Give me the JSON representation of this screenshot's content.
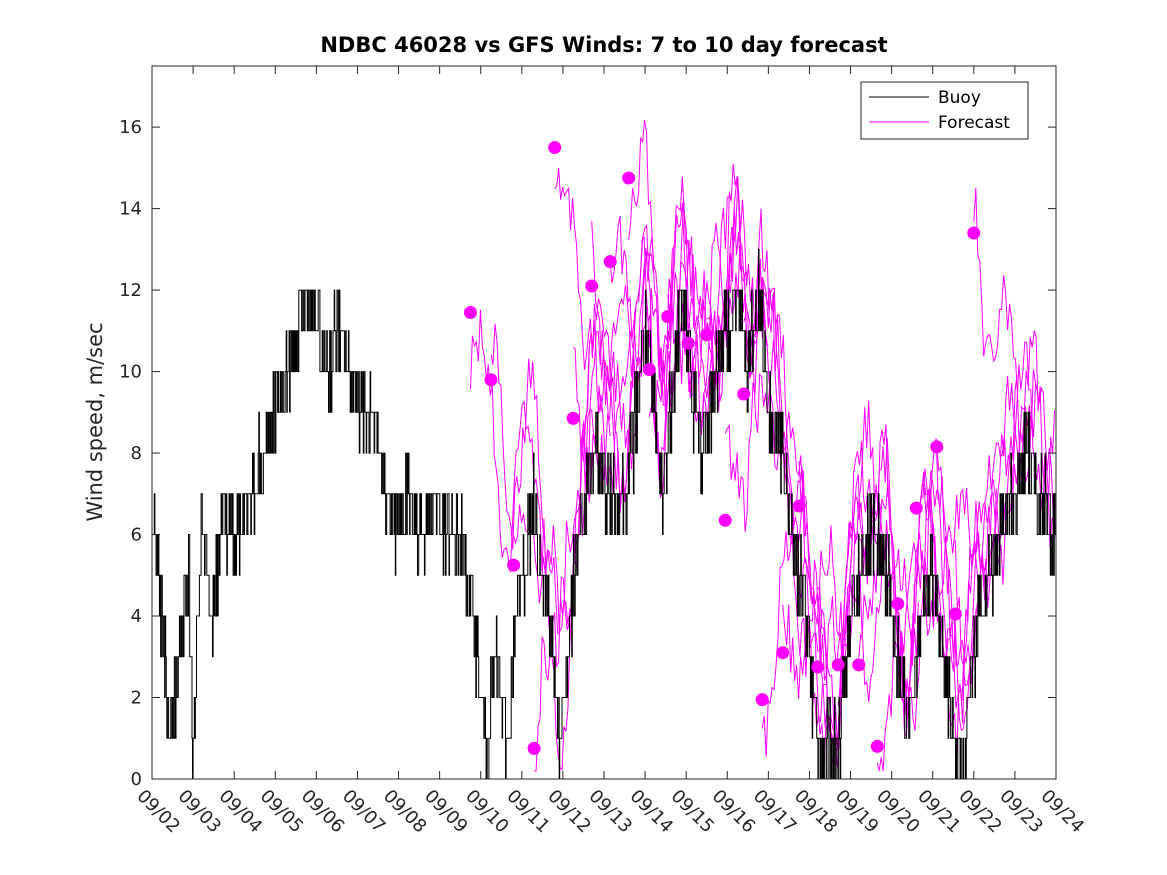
{
  "chart_data": {
    "type": "line",
    "title": "NDBC 46028 vs GFS Winds: 7 to 10 day forecast",
    "xlabel": "",
    "ylabel": "Wind speed, m/sec",
    "xlim": [
      0,
      22
    ],
    "ylim": [
      0,
      17.5
    ],
    "yticks": [
      0,
      2,
      4,
      6,
      8,
      10,
      12,
      14,
      16
    ],
    "xtick_labels": [
      "09/02",
      "09/03",
      "09/04",
      "09/05",
      "09/06",
      "09/07",
      "09/08",
      "09/09",
      "09/10",
      "09/11",
      "09/12",
      "09/13",
      "09/14",
      "09/15",
      "09/16",
      "09/17",
      "09/18",
      "09/19",
      "09/20",
      "09/21",
      "09/22",
      "09/23",
      "09/24"
    ],
    "legend": {
      "position": "top-right",
      "entries": [
        "Buoy",
        "Forecast"
      ]
    },
    "colors": {
      "buoy": "#000000",
      "forecast": "#ff00ff",
      "axis": "#262626"
    },
    "buoy_anchors": [
      [
        0.0,
        7
      ],
      [
        0.15,
        5
      ],
      [
        0.3,
        3
      ],
      [
        0.45,
        1
      ],
      [
        0.55,
        2
      ],
      [
        0.75,
        4
      ],
      [
        0.9,
        5
      ],
      [
        1.0,
        0.5
      ],
      [
        1.2,
        6
      ],
      [
        1.45,
        4
      ],
      [
        1.7,
        6
      ],
      [
        2.0,
        6
      ],
      [
        2.4,
        7
      ],
      [
        2.7,
        8
      ],
      [
        3.0,
        9
      ],
      [
        3.3,
        10
      ],
      [
        3.6,
        11
      ],
      [
        3.8,
        12
      ],
      [
        4.0,
        11
      ],
      [
        4.3,
        10
      ],
      [
        4.5,
        11
      ],
      [
        4.8,
        10
      ],
      [
        5.2,
        9
      ],
      [
        5.5,
        8
      ],
      [
        5.9,
        6
      ],
      [
        6.2,
        7
      ],
      [
        6.5,
        6
      ],
      [
        6.9,
        7
      ],
      [
        7.1,
        6
      ],
      [
        7.5,
        6
      ],
      [
        7.8,
        4
      ],
      [
        8.0,
        2
      ],
      [
        8.15,
        0.8
      ],
      [
        8.35,
        3
      ],
      [
        8.5,
        2
      ],
      [
        8.65,
        1
      ],
      [
        8.8,
        3
      ],
      [
        9.0,
        5
      ],
      [
        9.3,
        7
      ],
      [
        9.55,
        5
      ],
      [
        9.75,
        3
      ],
      [
        9.9,
        1
      ],
      [
        10.1,
        3
      ],
      [
        10.4,
        6
      ],
      [
        10.75,
        8
      ],
      [
        11.1,
        7
      ],
      [
        11.5,
        7
      ],
      [
        11.8,
        9
      ],
      [
        12.0,
        11
      ],
      [
        12.2,
        9
      ],
      [
        12.4,
        7
      ],
      [
        12.7,
        10
      ],
      [
        12.9,
        12
      ],
      [
        13.2,
        9
      ],
      [
        13.4,
        8
      ],
      [
        13.7,
        10
      ],
      [
        14.0,
        11
      ],
      [
        14.2,
        12
      ],
      [
        14.5,
        10
      ],
      [
        14.8,
        12
      ],
      [
        15.0,
        9
      ],
      [
        15.3,
        8
      ],
      [
        15.6,
        6
      ],
      [
        15.9,
        4
      ],
      [
        16.1,
        2
      ],
      [
        16.3,
        0.5
      ],
      [
        16.5,
        1
      ],
      [
        16.7,
        0.5
      ],
      [
        16.9,
        3
      ],
      [
        17.2,
        5
      ],
      [
        17.5,
        6
      ],
      [
        17.9,
        5
      ],
      [
        18.1,
        3
      ],
      [
        18.4,
        1.5
      ],
      [
        18.7,
        4
      ],
      [
        19.0,
        5
      ],
      [
        19.3,
        3
      ],
      [
        19.5,
        1
      ],
      [
        19.75,
        0
      ],
      [
        19.9,
        2
      ],
      [
        20.1,
        4
      ],
      [
        20.4,
        5
      ],
      [
        20.7,
        6
      ],
      [
        21.0,
        7
      ],
      [
        21.3,
        8
      ],
      [
        21.6,
        7
      ],
      [
        21.9,
        6
      ],
      [
        22.0,
        6
      ]
    ],
    "forecast_markers": [
      [
        7.75,
        11.45
      ],
      [
        8.25,
        9.8
      ],
      [
        8.8,
        5.25
      ],
      [
        9.3,
        0.75
      ],
      [
        9.8,
        15.5
      ],
      [
        10.25,
        8.85
      ],
      [
        10.7,
        12.1
      ],
      [
        11.15,
        12.7
      ],
      [
        11.6,
        14.75
      ],
      [
        12.1,
        10.05
      ],
      [
        12.55,
        11.35
      ],
      [
        13.05,
        10.7
      ],
      [
        13.5,
        10.9
      ],
      [
        13.95,
        6.35
      ],
      [
        14.4,
        9.45
      ],
      [
        14.85,
        1.95
      ],
      [
        15.35,
        3.1
      ],
      [
        15.75,
        6.7
      ],
      [
        16.2,
        2.75
      ],
      [
        16.7,
        2.8
      ],
      [
        17.2,
        2.8
      ],
      [
        17.65,
        0.8
      ],
      [
        18.15,
        4.3
      ],
      [
        18.6,
        6.65
      ],
      [
        19.1,
        8.15
      ],
      [
        19.55,
        4.05
      ],
      [
        20.0,
        13.4
      ]
    ]
  }
}
